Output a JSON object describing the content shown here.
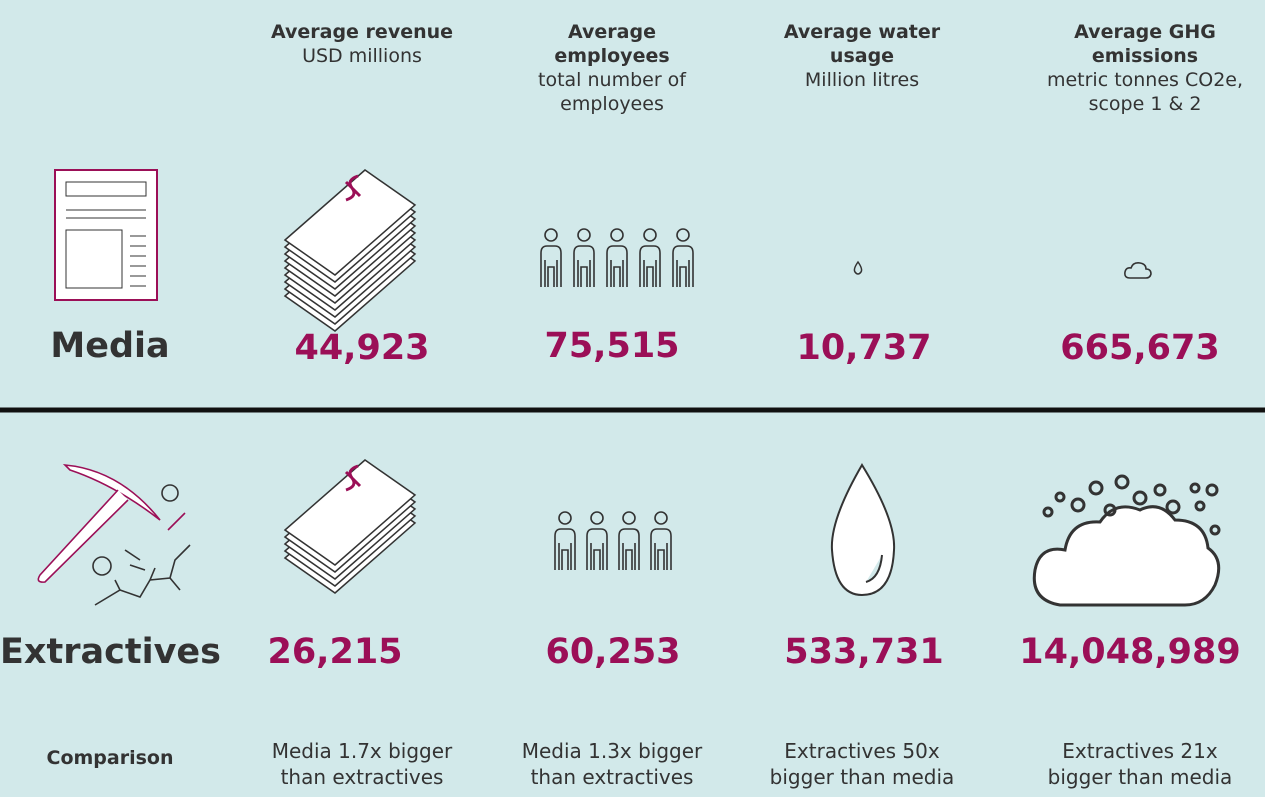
{
  "columns": [
    {
      "title": "Average revenue",
      "unit": "USD millions"
    },
    {
      "title": "Average employees",
      "unit": "total number of employees"
    },
    {
      "title": "Average water usage",
      "unit": "Million litres"
    },
    {
      "title": "Average GHG emissions",
      "unit": "metric tonnes CO2e, scope 1 & 2"
    }
  ],
  "rows": [
    {
      "label": "Media",
      "values": [
        "44,923",
        "75,515",
        "10,737",
        "665,673"
      ]
    },
    {
      "label": "Extractives",
      "values": [
        "26,215",
        "60,253",
        "533,731",
        "14,048,989"
      ]
    }
  ],
  "comparison": {
    "label": "Comparison",
    "values": [
      "Media 1.7x bigger than extractives",
      "Media 1.3x bigger than extractives",
      "Extractives 50x bigger than media",
      "Extractives 21x bigger than media"
    ]
  }
}
